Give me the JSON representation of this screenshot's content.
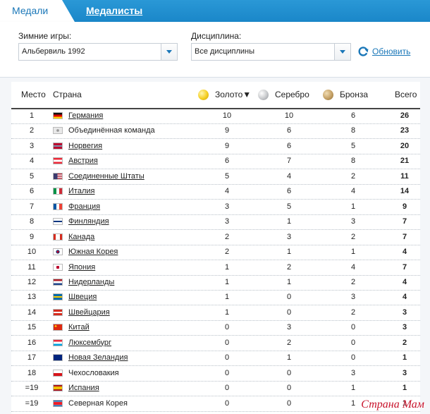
{
  "tabs": {
    "active": "Медали",
    "link": "Медалисты"
  },
  "filters": {
    "games_label": "Зимние игры:",
    "games_value": "Альбервиль 1992",
    "discipline_label": "Дисциплина:",
    "discipline_value": "Все дисциплины",
    "refresh_label": "Обновить"
  },
  "colors": {
    "gold": "#f5cf21",
    "silver": "#c7c9cc",
    "bronze": "#c4a065",
    "accent": "#1a77b8"
  },
  "table": {
    "headers": {
      "place": "Место",
      "country": "Страна",
      "gold": "Золото▼",
      "silver": "Серебро",
      "bronze": "Бронза",
      "total": "Всего"
    },
    "rows": [
      {
        "place": "1",
        "country": "Германия",
        "flag": "de",
        "link": true,
        "gold": "10",
        "silver": "10",
        "bronze": "6",
        "total": "26"
      },
      {
        "place": "2",
        "country": "Объединённая команда",
        "flag": "eun",
        "link": false,
        "gold": "9",
        "silver": "6",
        "bronze": "8",
        "total": "23"
      },
      {
        "place": "3",
        "country": "Норвегия",
        "flag": "no",
        "link": true,
        "gold": "9",
        "silver": "6",
        "bronze": "5",
        "total": "20"
      },
      {
        "place": "4",
        "country": "Австрия",
        "flag": "at",
        "link": true,
        "gold": "6",
        "silver": "7",
        "bronze": "8",
        "total": "21"
      },
      {
        "place": "5",
        "country": "Соединенные Штаты",
        "flag": "us",
        "link": true,
        "gold": "5",
        "silver": "4",
        "bronze": "2",
        "total": "11"
      },
      {
        "place": "6",
        "country": "Италия",
        "flag": "it",
        "link": true,
        "gold": "4",
        "silver": "6",
        "bronze": "4",
        "total": "14"
      },
      {
        "place": "7",
        "country": "Франция",
        "flag": "fr",
        "link": true,
        "gold": "3",
        "silver": "5",
        "bronze": "1",
        "total": "9"
      },
      {
        "place": "8",
        "country": "Финляндия",
        "flag": "fi",
        "link": true,
        "gold": "3",
        "silver": "1",
        "bronze": "3",
        "total": "7"
      },
      {
        "place": "9",
        "country": "Канада",
        "flag": "ca",
        "link": true,
        "gold": "2",
        "silver": "3",
        "bronze": "2",
        "total": "7"
      },
      {
        "place": "10",
        "country": "Южная Корея",
        "flag": "kr",
        "link": true,
        "gold": "2",
        "silver": "1",
        "bronze": "1",
        "total": "4"
      },
      {
        "place": "11",
        "country": "Япония",
        "flag": "jp",
        "link": true,
        "gold": "1",
        "silver": "2",
        "bronze": "4",
        "total": "7"
      },
      {
        "place": "12",
        "country": "Нидерланды",
        "flag": "nl",
        "link": true,
        "gold": "1",
        "silver": "1",
        "bronze": "2",
        "total": "4"
      },
      {
        "place": "13",
        "country": "Швеция",
        "flag": "se",
        "link": true,
        "gold": "1",
        "silver": "0",
        "bronze": "3",
        "total": "4"
      },
      {
        "place": "14",
        "country": "Швейцария",
        "flag": "ch",
        "link": true,
        "gold": "1",
        "silver": "0",
        "bronze": "2",
        "total": "3"
      },
      {
        "place": "15",
        "country": "Китай",
        "flag": "cn",
        "link": true,
        "gold": "0",
        "silver": "3",
        "bronze": "0",
        "total": "3"
      },
      {
        "place": "16",
        "country": "Люксембург",
        "flag": "lu",
        "link": true,
        "gold": "0",
        "silver": "2",
        "bronze": "0",
        "total": "2"
      },
      {
        "place": "17",
        "country": "Новая Зеландия",
        "flag": "nz",
        "link": true,
        "gold": "0",
        "silver": "1",
        "bronze": "0",
        "total": "1"
      },
      {
        "place": "18",
        "country": "Чехословакия",
        "flag": "cs",
        "link": false,
        "gold": "0",
        "silver": "0",
        "bronze": "3",
        "total": "3"
      },
      {
        "place": "=19",
        "country": "Испания",
        "flag": "es",
        "link": true,
        "gold": "0",
        "silver": "0",
        "bronze": "1",
        "total": "1"
      },
      {
        "place": "=19",
        "country": "Северная Корея",
        "flag": "kp",
        "link": false,
        "gold": "0",
        "silver": "0",
        "bronze": "1",
        "total": "1"
      }
    ]
  },
  "watermark": "Страна Мам"
}
